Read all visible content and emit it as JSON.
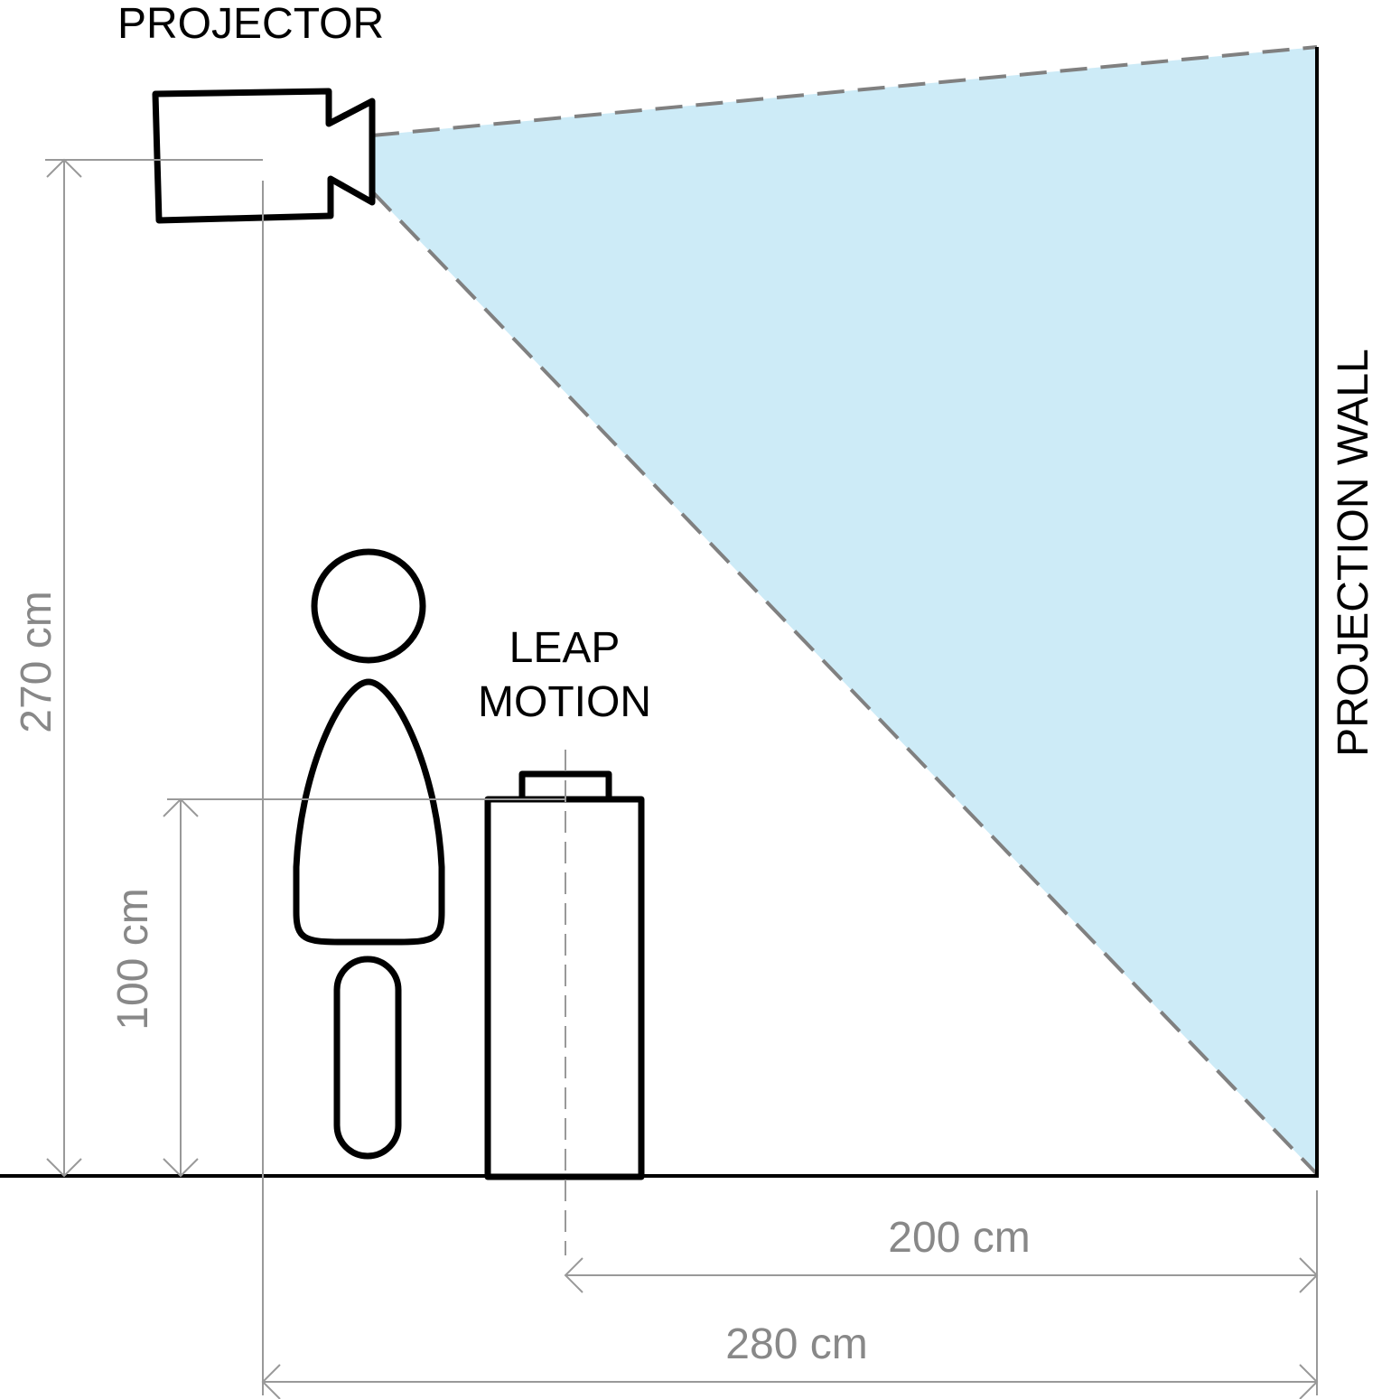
{
  "labels": {
    "projector": "PROJECTOR",
    "leap_line1": "LEAP",
    "leap_line2": "MOTION",
    "wall": "PROJECTION WALL"
  },
  "dimensions": {
    "projector_height": "270 cm",
    "leap_height": "100 cm",
    "leap_to_wall": "200 cm",
    "projector_to_wall": "280 cm"
  },
  "colors": {
    "projection_beam": "#cdebf7",
    "outline": "#000000",
    "dimension": "#999999",
    "beam_edge": "#808080"
  }
}
